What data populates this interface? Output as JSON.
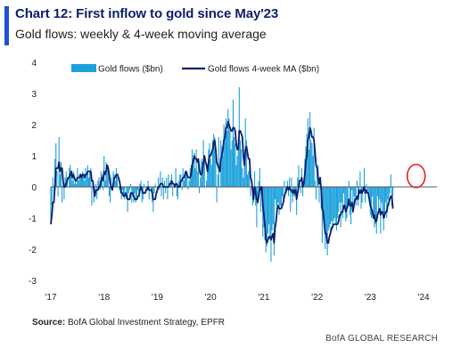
{
  "header": {
    "title": "Chart 12: First inflow to gold since May'23",
    "subtitle": "Gold flows: weekly & 4-week moving average"
  },
  "footer": {
    "source_label": "Source:",
    "source_text": "BofA Global Investment Strategy, EPFR",
    "brand": "BofA GLOBAL RESEARCH"
  },
  "colors": {
    "accent": "#1f4fd6",
    "bars": "#1da1dc",
    "ma_line": "#0b1f6b",
    "highlight_circle": "#e02020",
    "zero_line": "#555555"
  },
  "chart_data": {
    "type": "bar",
    "xlabel": "",
    "ylabel": "",
    "ylim": [
      -3,
      4
    ],
    "yticks": [
      -3,
      -2,
      -1,
      0,
      1,
      2,
      3,
      4
    ],
    "xlim": [
      2017.0,
      2024.25
    ],
    "xticks": [
      {
        "value": 2017,
        "label": "'17"
      },
      {
        "value": 2018,
        "label": "'18"
      },
      {
        "value": 2019,
        "label": "'19"
      },
      {
        "value": 2020,
        "label": "'20"
      },
      {
        "value": 2021,
        "label": "'21"
      },
      {
        "value": 2022,
        "label": "'22"
      },
      {
        "value": 2023,
        "label": "'23"
      },
      {
        "value": 2024,
        "label": "'24"
      }
    ],
    "legend": {
      "placement": "top",
      "entries": [
        "Gold flows ($bn)",
        "Gold flows 4-week MA ($bn)"
      ]
    },
    "annotation": {
      "type": "circle",
      "x": 2023.86,
      "y": 0.35
    },
    "series": [
      {
        "name": "Gold flows ($bn)",
        "kind": "bar",
        "frequency": "weekly",
        "start": 2017.0,
        "values": [
          -1.2,
          -0.6,
          0.3,
          -0.4,
          0.9,
          1.4,
          0.5,
          -0.3,
          1.6,
          0.4,
          0.8,
          -0.5,
          0.2,
          -0.4,
          0.3,
          0.5,
          0.3,
          0.0,
          0.6,
          0.7,
          0.4,
          0.2,
          0.5,
          0.1,
          0.2,
          0.1,
          0.6,
          0.2,
          0.4,
          0.3,
          0.3,
          0.5,
          0.4,
          0.2,
          0.6,
          0.4,
          0.7,
          0.3,
          0.5,
          0.6,
          -0.6,
          0.2,
          -0.5,
          -0.3,
          0.1,
          -0.4,
          0.2,
          0.3,
          -0.1,
          0.5,
          0.4,
          -0.1,
          1.0,
          0.2,
          0.8,
          0.6,
          0.7,
          -0.3,
          -0.5,
          0.3,
          0.0,
          0.5,
          0.4,
          0.2,
          0.6,
          0.3,
          0.0,
          -0.1,
          -0.2,
          -0.4,
          -0.1,
          -0.3,
          -0.4,
          0.0,
          -0.4,
          -0.8,
          -0.2,
          -0.1,
          0.1,
          -0.5,
          -0.3,
          -0.5,
          -0.2,
          -0.5,
          -0.3,
          -0.1,
          -0.2,
          0.1,
          0.2,
          -0.5,
          -0.4,
          0.1,
          0.0,
          -0.2,
          -0.1,
          0.2,
          -0.4,
          0.0,
          -0.1,
          -0.5,
          -0.8,
          -0.2,
          0.1,
          0.0,
          -0.2,
          0.3,
          -0.1,
          0.5,
          -0.3,
          0.3,
          -0.4,
          0.2,
          -0.2,
          0.3,
          -0.4,
          0.4,
          0.0,
          0.2,
          0.4,
          -0.3,
          0.0,
          0.0,
          0.6,
          -0.3,
          -0.4,
          0.2,
          0.4,
          0.4,
          -0.1,
          0.6,
          0.2,
          0.5,
          0.5,
          0.5,
          -0.1,
          0.2,
          0.6,
          0.7,
          1.2,
          0.7,
          1.1,
          0.6,
          1.2,
          0.5,
          0.8,
          -0.2,
          0.3,
          0.9,
          0.8,
          1.5,
          1.0,
          0.0,
          0.2,
          0.6,
          1.2,
          1.4,
          0.9,
          0.7,
          1.5,
          1.7,
          1.6,
          1.2,
          -0.5,
          0.4,
          1.6,
          0.0,
          1.5,
          1.3,
          1.0,
          2.0,
          1.6,
          2.2,
          1.8,
          2.5,
          2.2,
          1.8,
          1.2,
          1.5,
          2.8,
          1.6,
          1.4,
          0.7,
          1.0,
          1.2,
          3.2,
          1.5,
          1.2,
          0.6,
          0.3,
          0.7,
          2.2,
          1.5,
          0.4,
          0.5,
          0.6,
          -0.3,
          0.0,
          -0.6,
          -0.5,
          0.5,
          -0.6,
          -1.3,
          -0.4,
          0.2,
          0.6,
          -0.8,
          0.0,
          -1.6,
          -1.3,
          -1.7,
          -2.1,
          -1.9,
          -1.5,
          -1.2,
          -1.6,
          -2.4,
          -1.4,
          -1.2,
          -2.2,
          -0.4,
          -0.6,
          -0.7,
          -0.5,
          -0.9,
          -0.6,
          -0.7,
          -0.3,
          -0.4,
          0.2,
          -0.2,
          -0.2,
          0.2,
          -0.3,
          0.3,
          -0.8,
          0.3,
          -0.5,
          -0.3,
          -0.3,
          -0.1,
          -0.9,
          0.3,
          0.7,
          0.1,
          -0.2,
          0.6,
          -0.3,
          0.2,
          0.9,
          1.3,
          1.7,
          2.2,
          1.2,
          2.4,
          1.5,
          1.4,
          1.0,
          1.9,
          0.2,
          -0.4,
          0.6,
          0.7,
          -0.5,
          0.3,
          -0.7,
          -1.8,
          -1.0,
          -1.3,
          -2.0,
          -1.6,
          -2.2,
          -1.4,
          -1.3,
          -1.2,
          -1.1,
          -1.4,
          -1.1,
          -1.0,
          -1.2,
          -1.4,
          -1.0,
          -0.8,
          -0.5,
          -1.3,
          -0.5,
          -1.0,
          -0.2,
          -0.7,
          -1.1,
          -1.0,
          -0.6,
          0.2,
          -0.9,
          -1.2,
          -0.1,
          -0.8,
          -0.3,
          -0.4,
          -0.6,
          0.2,
          -0.6,
          -0.1,
          0.5,
          -0.7,
          -0.5,
          -0.1,
          0.6,
          -0.5,
          0.1,
          -0.1,
          -0.3,
          -0.5,
          -0.9,
          -1.0,
          -0.3,
          -1.0,
          -1.3,
          -1.2,
          -1.5,
          -0.3,
          -0.8,
          -0.4,
          -1.5,
          -0.5,
          -0.8,
          -1.4,
          -1.0,
          -0.5,
          -1.0,
          -0.4,
          -0.6,
          -0.2,
          0.4,
          -0.6,
          -0.3
        ]
      },
      {
        "name": "Gold flows 4-week MA ($bn)",
        "kind": "line",
        "frequency": "weekly",
        "start": 2017.0,
        "values": [
          -1.2,
          -0.9,
          -0.5,
          -0.5,
          0.0,
          0.6,
          0.6,
          0.6,
          0.8,
          0.5,
          0.6,
          0.6,
          0.2,
          0.0,
          0.0,
          0.1,
          0.2,
          0.3,
          0.3,
          0.4,
          0.5,
          0.3,
          0.4,
          0.3,
          0.2,
          0.2,
          0.3,
          0.3,
          0.3,
          0.4,
          0.3,
          0.4,
          0.4,
          0.3,
          0.4,
          0.4,
          0.5,
          0.5,
          0.5,
          0.5,
          0.2,
          0.2,
          -0.1,
          -0.3,
          -0.1,
          -0.1,
          -0.1,
          0.0,
          0.0,
          0.2,
          0.3,
          0.2,
          0.5,
          0.4,
          0.5,
          0.7,
          0.6,
          0.4,
          0.1,
          0.0,
          -0.1,
          0.1,
          0.3,
          0.3,
          0.4,
          0.4,
          0.3,
          0.2,
          0.0,
          -0.2,
          -0.2,
          -0.3,
          -0.3,
          -0.2,
          -0.3,
          -0.4,
          -0.4,
          -0.4,
          -0.2,
          -0.2,
          -0.2,
          -0.3,
          -0.4,
          -0.4,
          -0.4,
          -0.3,
          -0.3,
          -0.1,
          0.0,
          -0.1,
          -0.2,
          -0.2,
          -0.2,
          -0.1,
          -0.1,
          0.0,
          -0.1,
          -0.1,
          -0.1,
          -0.2,
          -0.4,
          -0.4,
          -0.4,
          -0.2,
          -0.1,
          0.0,
          0.0,
          0.1,
          0.1,
          0.1,
          0.0,
          0.0,
          0.0,
          0.0,
          -0.0,
          0.0,
          0.1,
          0.1,
          0.2,
          0.1,
          0.1,
          0.0,
          0.1,
          0.1,
          0.0,
          0.0,
          0.0,
          0.2,
          0.2,
          0.3,
          0.3,
          0.4,
          0.5,
          0.4,
          0.3,
          0.3,
          0.3,
          0.4,
          0.7,
          0.8,
          1.0,
          0.9,
          0.9,
          0.8,
          0.9,
          0.6,
          0.4,
          0.4,
          0.5,
          0.8,
          1.0,
          0.8,
          0.7,
          0.5,
          0.8,
          1.0,
          1.0,
          1.1,
          1.2,
          1.4,
          1.5,
          1.2,
          0.8,
          0.7,
          0.6,
          0.5,
          0.9,
          1.0,
          1.2,
          1.5,
          1.6,
          1.9,
          1.9,
          2.1,
          2.0,
          1.9,
          1.8,
          1.8,
          1.9,
          1.9,
          1.8,
          1.4,
          1.2,
          1.2,
          1.8,
          1.8,
          1.7,
          1.6,
          1.0,
          0.7,
          1.2,
          1.3,
          1.1,
          0.9,
          0.9,
          0.3,
          0.2,
          -0.1,
          -0.4,
          0.0,
          -0.2,
          -0.4,
          -0.5,
          -0.3,
          0.0,
          -0.1,
          0.0,
          -0.6,
          -0.9,
          -1.2,
          -1.7,
          -1.8,
          -1.7,
          -1.6,
          -1.6,
          -1.7,
          -1.6,
          -1.5,
          -1.8,
          -1.3,
          -1.1,
          -0.7,
          -0.6,
          -0.7,
          -0.7,
          -0.7,
          -0.6,
          -0.5,
          -0.3,
          -0.2,
          -0.1,
          0.0,
          -0.1,
          0.0,
          -0.1,
          -0.1,
          -0.2,
          -0.1,
          -0.2,
          -0.1,
          -0.4,
          -0.2,
          0.0,
          0.2,
          0.2,
          0.3,
          0.0,
          0.1,
          0.4,
          0.8,
          1.0,
          1.5,
          1.6,
          1.9,
          1.8,
          1.6,
          1.6,
          1.5,
          1.1,
          0.7,
          0.6,
          0.3,
          0.1,
          0.3,
          -0.1,
          -0.7,
          -0.8,
          -1.2,
          -1.5,
          -1.5,
          -1.8,
          -1.8,
          -1.6,
          -1.5,
          -1.3,
          -1.3,
          -1.2,
          -1.2,
          -1.2,
          -1.2,
          -1.2,
          -1.1,
          -0.9,
          -0.9,
          -0.8,
          -0.8,
          -0.6,
          -0.6,
          -0.8,
          -0.7,
          -0.6,
          -0.4,
          -0.6,
          -0.6,
          -0.5,
          -0.8,
          -0.6,
          -0.4,
          -0.4,
          -0.3,
          -0.4,
          -0.1,
          -0.2,
          -0.1,
          -0.2,
          -0.1,
          0.0,
          -0.2,
          -0.1,
          -0.2,
          -0.2,
          -0.4,
          -0.6,
          -0.7,
          -0.8,
          -1.0,
          -0.9,
          -1.1,
          -1.1,
          -0.9,
          -0.8,
          -0.7,
          -0.9,
          -0.8,
          -0.8,
          -1.0,
          -0.9,
          -0.8,
          -0.8,
          -0.6,
          -0.5,
          -0.4,
          -0.3,
          -0.3,
          -0.7
        ]
      }
    ]
  }
}
